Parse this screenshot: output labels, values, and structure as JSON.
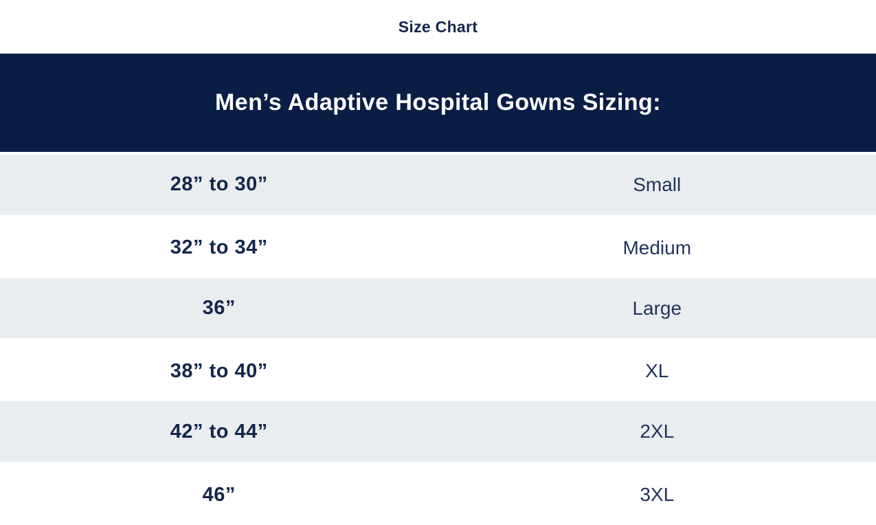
{
  "page_title": "Size Chart",
  "table": {
    "header": "Men’s Adaptive Hospital Gowns Sizing:",
    "columns": [
      "chest-measurement",
      "size-label"
    ],
    "rows": [
      {
        "size_range": "28” to 30”",
        "size_label": "Small"
      },
      {
        "size_range": "32” to 34”",
        "size_label": "Medium"
      },
      {
        "size_range": "36”",
        "size_label": "Large"
      },
      {
        "size_range": "38” to 40”",
        "size_label": "XL"
      },
      {
        "size_range": "42” to 44”",
        "size_label": "2XL"
      },
      {
        "size_range": "46”",
        "size_label": "3XL"
      }
    ]
  },
  "colors": {
    "header_background": "#0a1e45",
    "header_text": "#ffffff",
    "row_alt_background": "#e9edf0",
    "row_background": "#ffffff",
    "text_navy": "#14264d"
  }
}
